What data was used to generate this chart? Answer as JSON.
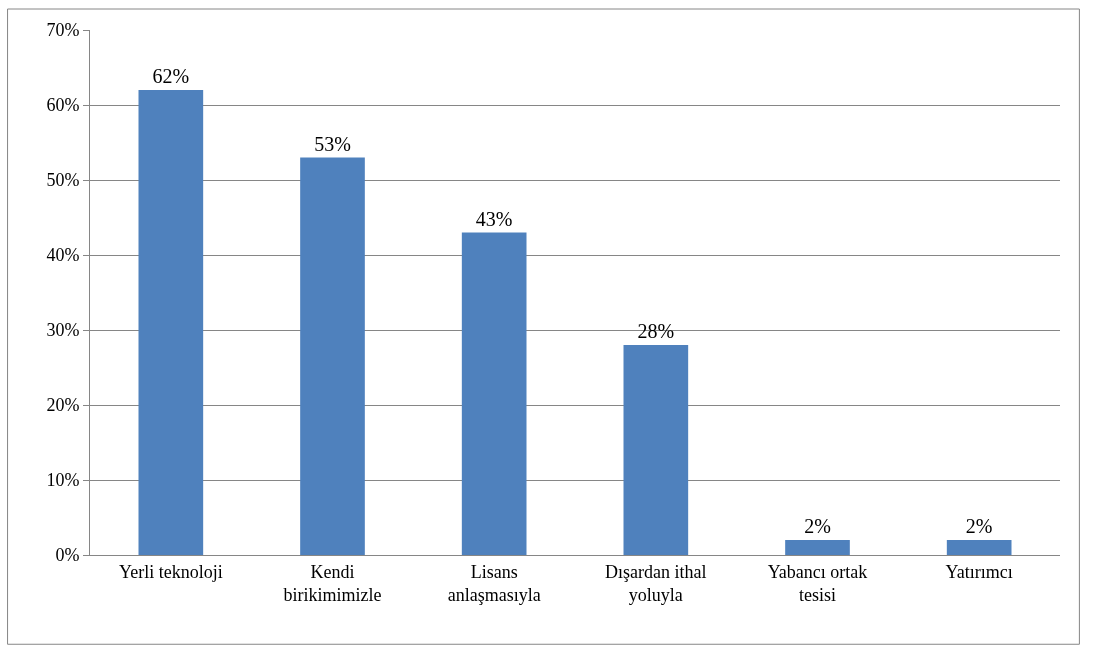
{
  "chart_data": {
    "type": "bar",
    "categories": [
      "Yerli teknoloji",
      "Kendi\nbirikimimizle",
      "Lisans\nanlaşmasıyla",
      "Dışardan ithal\nyoluyla",
      "Yabancı ortak\ntesisi",
      "Yatırımcı"
    ],
    "values": [
      62,
      53,
      43,
      28,
      2,
      2
    ],
    "value_labels": [
      "62%",
      "53%",
      "43%",
      "28%",
      "2%",
      "2%"
    ],
    "color": "#4f81bd",
    "ylim": [
      0,
      70
    ],
    "yticks": [
      {
        "value": 0,
        "label": "0%"
      },
      {
        "value": 10,
        "label": "10%"
      },
      {
        "value": 20,
        "label": "20%"
      },
      {
        "value": 30,
        "label": "30%"
      },
      {
        "value": 40,
        "label": "40%"
      },
      {
        "value": 50,
        "label": "50%"
      },
      {
        "value": 60,
        "label": "60%"
      },
      {
        "value": 70,
        "label": "70%"
      }
    ],
    "grid": "y",
    "legend": false
  }
}
